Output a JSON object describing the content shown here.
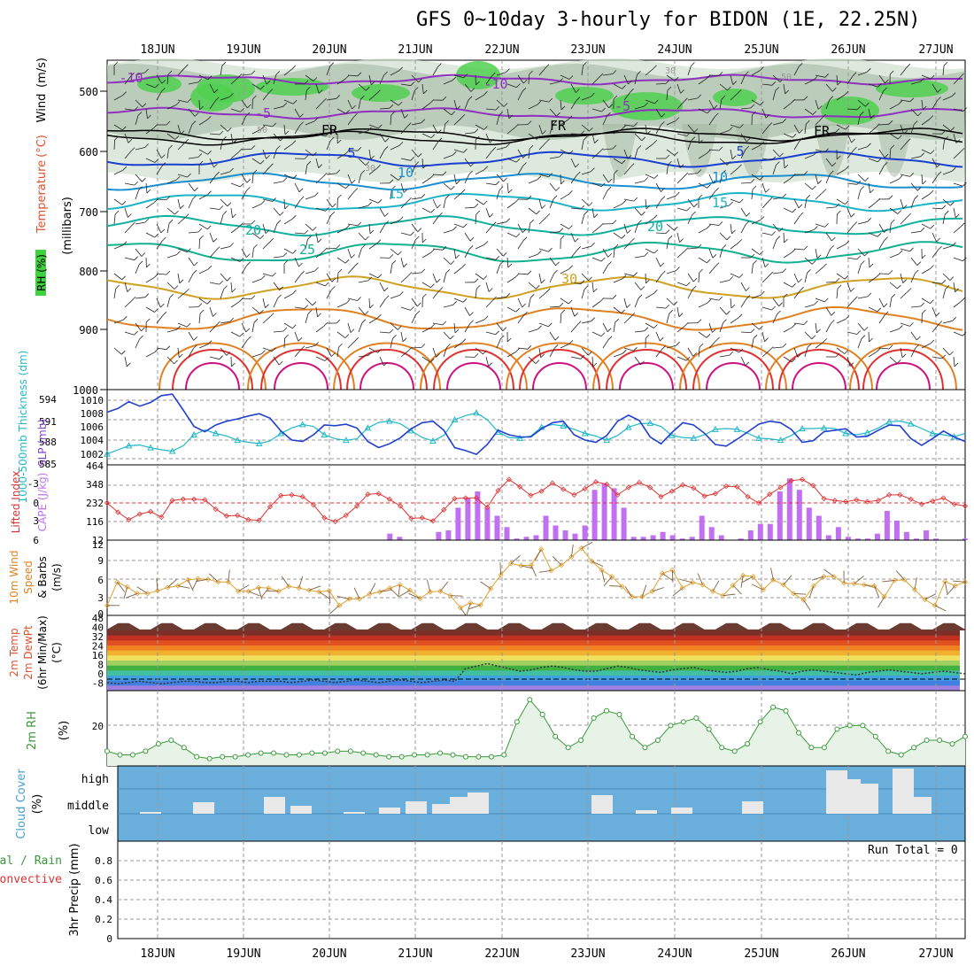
{
  "title": "GFS 0~10day 3-hourly for BIDON (1E, 22.25N)",
  "day_labels": [
    "18JUN",
    "19JUN",
    "20JUN",
    "21JUN",
    "22JUN",
    "23JUN",
    "24JUN",
    "25JUN",
    "26JUN",
    "27JUN"
  ],
  "colors": {
    "grid": "#999999",
    "rh_fill": "#cfe0cf",
    "rh_dark": "#9fb59f",
    "rh_green": "#4fd04f",
    "cloud_bg": "#6aaedb",
    "purple": "#9030c0",
    "blue": "#1a3fd0",
    "cyan": "#1ab4c8",
    "teal": "#10b090",
    "orange": "#e08020",
    "red": "#e03030",
    "magenta": "#d01080",
    "cape": "#c070f0",
    "slp": "#2040d0",
    "thick": "#20b8c8",
    "wind": "#e0a030",
    "barb": "#806040",
    "rh2m": "#3a9a3a"
  },
  "panels": {
    "upper": {
      "ylabel_parts": [
        "RH (%)",
        "Temperature",
        "(°C)",
        "Wind",
        "(m/s)"
      ],
      "ylabel_units": "(millibars)",
      "yticks": [
        "500",
        "600",
        "700",
        "800",
        "900",
        "1000"
      ],
      "contour_labels": [
        {
          "text": "-10",
          "color": "#9030c0"
        },
        {
          "text": "-10",
          "color": "#9030c0"
        },
        {
          "text": "-5",
          "color": "#9030c0"
        },
        {
          "text": "-5",
          "color": "#9030c0"
        },
        {
          "text": "FR",
          "color": "#000000"
        },
        {
          "text": "FR",
          "color": "#000000"
        },
        {
          "text": "FR",
          "color": "#000000"
        },
        {
          "text": "5",
          "color": "#1a3fd0"
        },
        {
          "text": "5",
          "color": "#1a3fd0"
        },
        {
          "text": "10",
          "color": "#1a8fd0"
        },
        {
          "text": "10",
          "color": "#1a8fd0"
        },
        {
          "text": "15",
          "color": "#1ab4c8"
        },
        {
          "text": "15",
          "color": "#1ab4c8"
        },
        {
          "text": "20",
          "color": "#10b0a0"
        },
        {
          "text": "20",
          "color": "#10b0a0"
        },
        {
          "text": "25",
          "color": "#10b090"
        },
        {
          "text": "30",
          "color": "#d0a020"
        },
        {
          "text": "30",
          "color": "#999999"
        },
        {
          "text": "30",
          "color": "#999999"
        },
        {
          "text": "50",
          "color": "#999999"
        },
        {
          "text": "50",
          "color": "#999999"
        }
      ]
    },
    "slp": {
      "ylabel_left": "1000-500mb Thickness (dm)",
      "ylabel_right": "SLP (mb)",
      "yticks_left": [
        "594",
        "591",
        "588",
        "585"
      ],
      "yticks_right": [
        "1010",
        "1008",
        "1006",
        "1004",
        "1002"
      ]
    },
    "li": {
      "ylabel_left": "Lifted Index",
      "ylabel_right": "CAPE (J/kg)",
      "yticks_left": [
        "-3",
        "0",
        "3",
        "6"
      ],
      "yticks_right": [
        "464",
        "348",
        "232",
        "116",
        "12"
      ]
    },
    "wind": {
      "ylabel": [
        "10m Wind",
        "Speed",
        "& Barbs",
        "(m/s)"
      ],
      "yticks": [
        "12",
        "9",
        "6",
        "3",
        "0"
      ]
    },
    "temp": {
      "ylabel": [
        "2m Temp",
        "2m DewPt",
        "(6hr Min/Max)",
        "(°C)"
      ],
      "yticks": [
        "48",
        "40",
        "32",
        "24",
        "16",
        "8",
        "0",
        "-8"
      ]
    },
    "rh2m": {
      "ylabel": [
        "2m RH",
        "(%)"
      ],
      "yticks": [
        "20"
      ]
    },
    "cloud": {
      "ylabel": [
        "Cloud Cover",
        "(%)"
      ],
      "yticks": [
        "high",
        "middle",
        "low"
      ]
    },
    "precip": {
      "ylabel": [
        "Total / Rain",
        "Convective",
        "3hr Precip (mm)"
      ],
      "yticks": [
        "0.8",
        "0.6",
        "0.4",
        "0.2",
        "0"
      ],
      "run_total": "Run Total = 0"
    }
  },
  "chart_data": [
    {
      "type": "line",
      "title": "1000-500mb Thickness (dm)",
      "ylim": [
        584,
        595
      ],
      "series": [
        {
          "name": "Thickness",
          "values": [
            585.6,
            586.2,
            586.8,
            586.9,
            586.5,
            586.2,
            586.0,
            586.8,
            588.4,
            589.1,
            588.6,
            588.2,
            587.6,
            587.3,
            587.1,
            587.5,
            588.6,
            589.4,
            589.9,
            589.6,
            588.4,
            587.8,
            587.6,
            587.8,
            589.4,
            590.2,
            590.4,
            590.0,
            589.0,
            588.0,
            587.5,
            588.3,
            590.6,
            591.2,
            591.6,
            590.6,
            588.8,
            588.0,
            587.9,
            588.2,
            589.5,
            589.9,
            589.7,
            589.2,
            588.6,
            588.2,
            587.6,
            588.3,
            589.5,
            590.0,
            590.1,
            589.6,
            588.3,
            588.0,
            587.9,
            588.4,
            589.2,
            589.3,
            589.2,
            588.6,
            587.9,
            587.8,
            587.6,
            588.3,
            589.3,
            589.3,
            589.4,
            589.3,
            588.6,
            588.4,
            588.7,
            589.4,
            590.3,
            590.4,
            590.0,
            589.3,
            588.6,
            588.4,
            588.1,
            588.6
          ]
        }
      ]
    },
    {
      "type": "line",
      "title": "SLP (mb)",
      "ylim": [
        1001,
        1011
      ],
      "series": [
        {
          "name": "SLP",
          "values": [
            1008.0,
            1008.5,
            1009.4,
            1008.8,
            1009.3,
            1010.2,
            1010.4,
            1008.3,
            1006.1,
            1005.4,
            1006.3,
            1006.8,
            1007.1,
            1007.5,
            1007.8,
            1007.2,
            1005.5,
            1004.3,
            1004.1,
            1005.0,
            1006.3,
            1006.2,
            1006.4,
            1005.9,
            1004.1,
            1003.3,
            1003.8,
            1004.6,
            1005.8,
            1006.6,
            1006.8,
            1005.6,
            1003.3,
            1002.9,
            1002.4,
            1003.7,
            1005.6,
            1005.0,
            1004.7,
            1004.7,
            1005.8,
            1006.6,
            1006.8,
            1005.0,
            1004.3,
            1004.0,
            1004.9,
            1006.8,
            1007.6,
            1006.9,
            1004.7,
            1003.8,
            1005.3,
            1006.6,
            1006.3,
            1005.2,
            1003.7,
            1003.5,
            1004.4,
            1005.4,
            1006.4,
            1006.8,
            1006.6,
            1005.7,
            1004.0,
            1004.2,
            1005.4,
            1005.6,
            1005.8,
            1004.7,
            1004.8,
            1005.6,
            1006.3,
            1006.2,
            1004.5,
            1003.6,
            1004.5,
            1005.5,
            1004.7,
            1004.1
          ]
        }
      ]
    },
    {
      "type": "line",
      "title": "Lifted Index",
      "ylim": [
        6,
        -5
      ],
      "series": [
        {
          "name": "Lifted Index",
          "values": [
            0.0,
            1.5,
            2.7,
            1.8,
            1.4,
            2.3,
            -0.4,
            -0.6,
            -0.6,
            -0.5,
            1.0,
            2.1,
            2.0,
            2.7,
            2.8,
            0.6,
            -1.2,
            -1.3,
            -1.0,
            0.3,
            2.4,
            3.0,
            2.0,
            0.5,
            -1.4,
            -1.5,
            -0.6,
            0.5,
            2.5,
            2.4,
            2.9,
            1.1,
            -0.7,
            -0.8,
            -0.8,
            0.7,
            -2.0,
            -3.8,
            -2.6,
            -1.2,
            -1.9,
            -3.2,
            -2.2,
            -1.3,
            -2.3,
            -3.4,
            -3.0,
            -1.3,
            -2.5,
            -3.3,
            -2.5,
            -1.0,
            -1.9,
            -2.9,
            -2.4,
            -1.1,
            -1.5,
            -2.7,
            -2.6,
            -1.0,
            0.0,
            -1.4,
            -2.5,
            -3.6,
            -3.8,
            -2.8,
            -0.7,
            -0.4,
            -0.2,
            -0.5,
            -0.2,
            -0.4,
            -1.3,
            -1.3,
            -0.6,
            0.2,
            -0.3,
            -0.8,
            0.2,
            0.5
          ]
        }
      ]
    },
    {
      "type": "bar",
      "title": "CAPE (J/kg)",
      "ylim": [
        0,
        464
      ],
      "series": [
        {
          "name": "CAPE",
          "values": [
            0,
            0,
            0,
            0,
            0,
            0,
            0,
            0,
            0,
            0,
            0,
            0,
            0,
            0,
            0,
            0,
            0,
            0,
            0,
            0,
            0,
            0,
            0,
            0,
            0,
            0,
            0,
            0,
            0,
            40,
            20,
            0,
            0,
            0,
            50,
            60,
            200,
            260,
            300,
            200,
            150,
            80,
            10,
            20,
            30,
            150,
            90,
            60,
            40,
            90,
            310,
            350,
            320,
            200,
            20,
            20,
            30,
            50,
            30,
            10,
            20,
            150,
            80,
            30,
            0,
            10,
            60,
            100,
            100,
            300,
            380,
            310,
            200,
            150,
            30,
            80,
            20,
            10,
            10,
            40,
            180,
            120,
            50,
            10,
            60,
            10,
            0,
            0,
            10
          ]
        }
      ]
    },
    {
      "type": "line",
      "title": "10m Wind Speed",
      "ylim": [
        0,
        12
      ],
      "series": [
        {
          "name": "Wind Speed",
          "values": [
            1.0,
            5.3,
            4.4,
            3.2,
            3.2,
            3.7,
            4.3,
            4.6,
            5.7,
            5.9,
            5.8,
            5.3,
            5.3,
            3.6,
            3.6,
            4.3,
            4.2,
            3.6,
            4.5,
            4.2,
            3.8,
            3.5,
            3.7,
            1.0,
            2.2,
            2.2,
            3.1,
            3.5,
            4.2,
            4.8,
            3.8,
            2.3,
            3.5,
            3.6,
            2.8,
            0.6,
            1.5,
            1.1,
            4.1,
            6.6,
            8.7,
            8.3,
            8.4,
            11.3,
            7.4,
            8.4,
            9.9,
            11.5,
            9.1,
            7.5,
            6.3,
            4.5,
            2.6,
            2.6,
            3.6,
            6.9,
            7.5,
            4.2,
            5.2,
            4.8,
            3.6,
            2.8,
            4.7,
            6.5,
            6.3,
            3.9,
            5.7,
            4.8,
            3.2,
            2.0,
            4.6,
            6.3,
            6.3,
            5.1,
            5.0,
            4.8,
            4.6,
            2.6,
            5.6,
            5.7,
            3.9,
            2.1,
            1.0,
            5.4,
            4.6,
            5.3
          ]
        }
      ]
    },
    {
      "type": "area",
      "title": "2m Temp",
      "ylim": [
        -8,
        48
      ],
      "series": [
        {
          "name": "Max",
          "values": [
            39,
            44,
            44,
            39,
            39,
            44,
            44,
            39,
            39,
            44,
            44,
            39,
            39,
            44,
            44,
            39,
            39,
            44,
            44,
            39,
            39,
            44,
            44,
            39,
            39,
            44,
            44,
            39,
            39,
            44,
            44,
            39,
            39,
            44,
            44,
            39,
            39,
            44,
            44,
            39,
            39,
            44,
            44,
            39,
            39,
            44,
            44,
            39,
            39,
            44,
            44,
            39,
            39,
            44,
            44,
            39,
            39,
            44,
            44,
            39,
            39,
            44,
            44,
            39,
            39,
            44,
            44,
            39,
            39,
            44,
            44,
            39,
            39,
            44,
            44,
            39,
            39,
            44,
            44,
            39
          ]
        },
        {
          "name": "DewPt",
          "values": [
            -3,
            -4,
            -3,
            -2,
            -3,
            -4,
            -3,
            -2,
            -2,
            -3,
            -3,
            -2,
            -2,
            -3,
            -2,
            -2,
            -2,
            -3,
            -2,
            -1,
            -2,
            -3,
            -2,
            -1,
            -2,
            -3,
            -2,
            -1,
            -2,
            -3,
            -2,
            -1,
            -2,
            8,
            10,
            12,
            10,
            8,
            6,
            7,
            9,
            10,
            9,
            7,
            6,
            6,
            8,
            10,
            9,
            7,
            6,
            5,
            7,
            8,
            9,
            7,
            6,
            5,
            6,
            8,
            9,
            7,
            6,
            4,
            6,
            7,
            6,
            5,
            4,
            3,
            5,
            6,
            7,
            6,
            5,
            4,
            5,
            6,
            5,
            4
          ]
        }
      ]
    },
    {
      "type": "area",
      "title": "2m RH",
      "ylim": [
        0,
        40
      ],
      "series": [
        {
          "name": "2m RH",
          "values": [
            8,
            6,
            6,
            8,
            12,
            14,
            10,
            5,
            4,
            5,
            5,
            6,
            7,
            7,
            6,
            6,
            7,
            7,
            8,
            8,
            7,
            6,
            5,
            5,
            6,
            6,
            7,
            6,
            5,
            5,
            5,
            6,
            24,
            36,
            28,
            16,
            10,
            14,
            26,
            30,
            28,
            16,
            10,
            14,
            22,
            24,
            26,
            20,
            10,
            8,
            12,
            24,
            32,
            30,
            18,
            10,
            10,
            20,
            22,
            22,
            16,
            8,
            6,
            10,
            14,
            14,
            12,
            16
          ]
        }
      ]
    },
    {
      "type": "bar",
      "title": "3hr Precip (mm)",
      "ylim": [
        0,
        1
      ],
      "series": [
        {
          "name": "Total",
          "values": []
        }
      ]
    }
  ]
}
